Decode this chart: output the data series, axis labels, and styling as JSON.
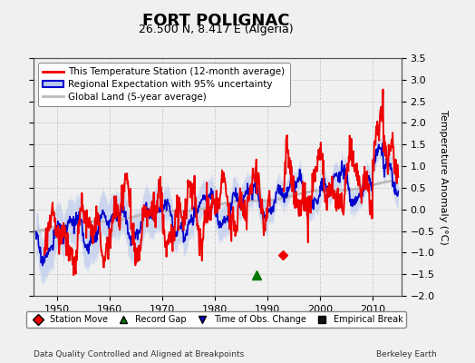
{
  "title": "FORT POLIGNAC",
  "subtitle": "26.500 N, 8.417 E (Algeria)",
  "ylabel": "Temperature Anomaly (°C)",
  "footer_left": "Data Quality Controlled and Aligned at Breakpoints",
  "footer_right": "Berkeley Earth",
  "xlim": [
    1945.5,
    2015.5
  ],
  "ylim": [
    -2.0,
    3.5
  ],
  "yticks": [
    -2.0,
    -1.5,
    -1.0,
    -0.5,
    0.0,
    0.5,
    1.0,
    1.5,
    2.0,
    2.5,
    3.0,
    3.5
  ],
  "xticks": [
    1950,
    1960,
    1970,
    1980,
    1990,
    2000,
    2010
  ],
  "station_color": "#EE0000",
  "regional_color": "#0000CC",
  "regional_fill_color": "#B8C8EE",
  "global_color": "#BBBBBB",
  "bg_color": "#F0F0F0",
  "plot_bg_color": "#F0F0F0",
  "grid_color": "#CCCCCC",
  "title_fontsize": 13,
  "subtitle_fontsize": 9,
  "tick_fontsize": 8,
  "legend_fontsize": 7.5,
  "ylabel_fontsize": 8
}
